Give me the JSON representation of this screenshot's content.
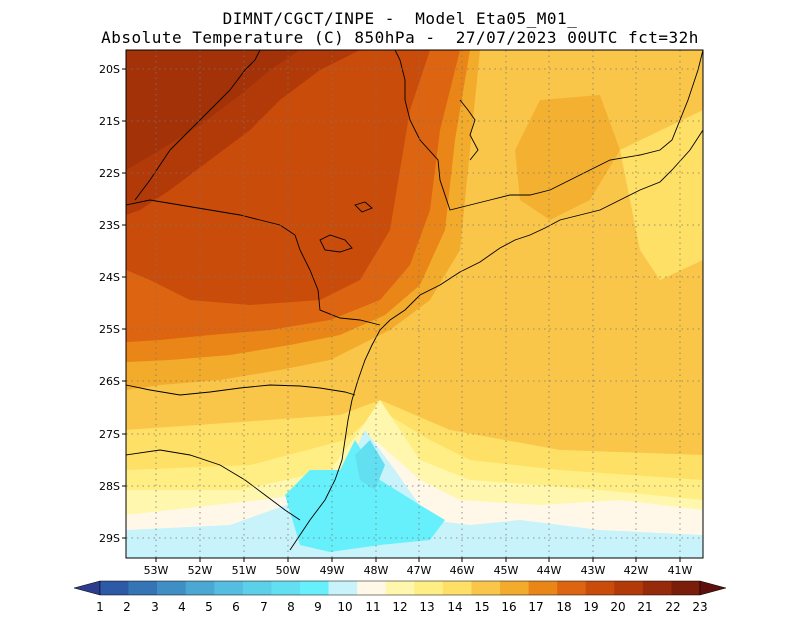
{
  "header": {
    "line1": "DIMNT/CGCT/INPE -  Model Eta05_M01_",
    "line2": "Absolute Temperature (C) 850hPa -  27/07/2023 00UTC fct=32h"
  },
  "lat_labels": [
    "20S",
    "21S",
    "22S",
    "23S",
    "24S",
    "25S",
    "26S",
    "27S",
    "28S",
    "29S"
  ],
  "lon_labels": [
    "53W",
    "52W",
    "51W",
    "50W",
    "49W",
    "48W",
    "47W",
    "46W",
    "45W",
    "44W",
    "43W",
    "42W",
    "41W"
  ],
  "colorbar": {
    "labels": [
      "1",
      "2",
      "3",
      "4",
      "5",
      "6",
      "7",
      "8",
      "9",
      "10",
      "11",
      "12",
      "13",
      "14",
      "15",
      "16",
      "17",
      "18",
      "19",
      "20",
      "21",
      "22",
      "23"
    ],
    "colors": [
      "#2d3d8e",
      "#2d5aa6",
      "#3575b5",
      "#3f8fc4",
      "#4aa8d3",
      "#55bde0",
      "#5ccfe9",
      "#62e0f2",
      "#66f0fb",
      "#c8f3fb",
      "#fff8e8",
      "#fff7ad",
      "#ffee83",
      "#fee067",
      "#f9c64a",
      "#f3ab2b",
      "#e98617",
      "#dd6410",
      "#c94c0b",
      "#b23a08",
      "#952b0a",
      "#7a1d0b",
      "#5e110c"
    ]
  }
}
